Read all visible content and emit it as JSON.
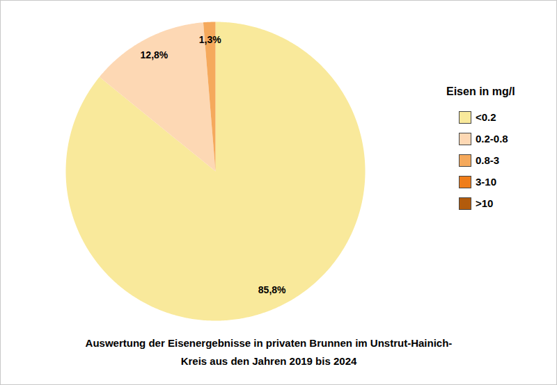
{
  "chart_data": {
    "type": "pie",
    "title": "Auswertung der Eisenergebnisse in privaten Brunnen im Unstrut-Hainich-Kreis aus den Jahren 2019 bis 2024",
    "legend_title": "Eisen in mg/l",
    "categories": [
      "<0.2",
      "0.2-0.8",
      "0.8-3",
      "3-10",
      ">10"
    ],
    "values": [
      85.8,
      12.8,
      1.3,
      0,
      0
    ],
    "value_labels": [
      "85,8%",
      "12,8%",
      "1,3%",
      null,
      null
    ],
    "colors": [
      "#f9e99b",
      "#fdd8b4",
      "#f5a95c",
      "#ef7d1a",
      "#b25b0c"
    ],
    "legend": "right",
    "data_labels": true
  }
}
